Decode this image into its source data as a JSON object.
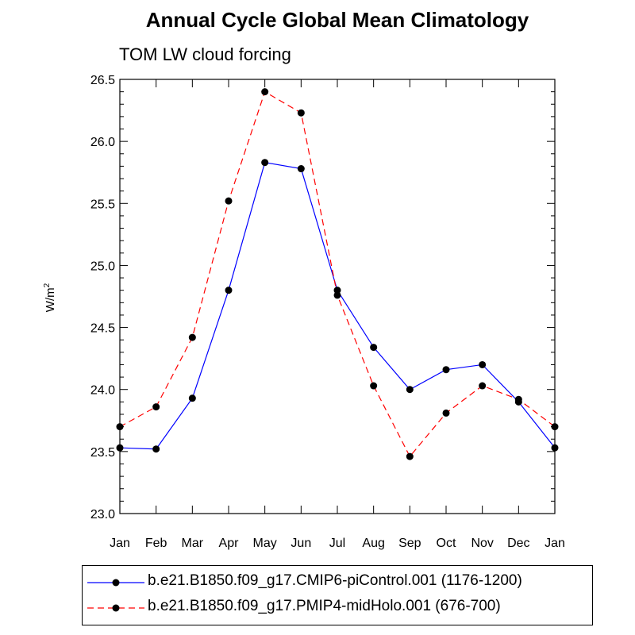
{
  "chart_data": {
    "type": "line",
    "title": "Annual Cycle Global Mean Climatology",
    "subtitle": "TOM LW cloud forcing",
    "ylabel": "W/m",
    "ylabel_superscript": "2",
    "xlabel": "",
    "categories": [
      "Jan",
      "Feb",
      "Mar",
      "Apr",
      "May",
      "Jun",
      "Jul",
      "Aug",
      "Sep",
      "Oct",
      "Nov",
      "Dec",
      "Jan"
    ],
    "ylim": [
      23.0,
      26.5
    ],
    "yticks": [
      "23.0",
      "23.5",
      "24.0",
      "24.5",
      "25.0",
      "25.5",
      "26.0",
      "26.5"
    ],
    "series": [
      {
        "name": "b.e21.B1850.f09_g17.CMIP6-piControl.001 (1176-1200)",
        "color": "#0000ff",
        "dash": "solid",
        "values": [
          23.53,
          23.52,
          23.93,
          24.8,
          25.83,
          25.78,
          24.8,
          24.34,
          24.0,
          24.16,
          24.2,
          23.9,
          23.53
        ]
      },
      {
        "name": "b.e21.B1850.f09_g17.PMIP4-midHolo.001 (676-700)",
        "color": "#ff0000",
        "dash": "dashed",
        "values": [
          23.7,
          23.86,
          24.42,
          25.52,
          26.4,
          26.23,
          24.76,
          24.03,
          23.46,
          23.81,
          24.03,
          23.92,
          23.7
        ]
      }
    ],
    "marker_color": "#000000",
    "grid": false,
    "legend_position": "bottom"
  }
}
